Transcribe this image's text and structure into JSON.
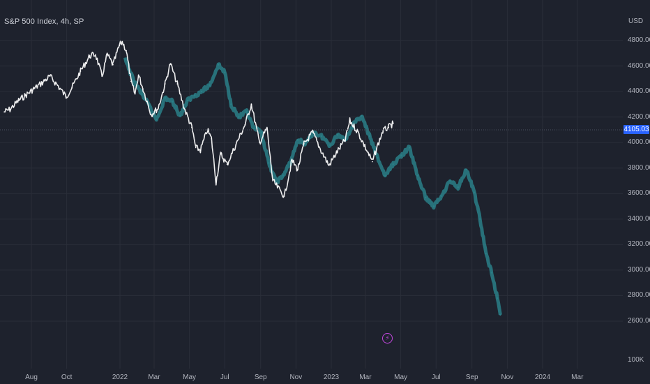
{
  "chart_title": "S&P 500 Index, 4h, SP",
  "currency": "USD",
  "price_label": "4105.03",
  "bottom_axis_label": "100K",
  "event_icon": "lightning-icon",
  "chart_data": {
    "type": "line",
    "title": "S&P 500 Index, 4h, SP",
    "ylabel": "USD",
    "ylim": [
      2490,
      4900
    ],
    "y_ticks": [
      2600,
      2800,
      3000,
      3200,
      3400,
      3600,
      3800,
      4000,
      4200,
      4400,
      4600,
      4800
    ],
    "y_tick_labels": [
      "2600.00",
      "2800.00",
      "3000.00",
      "3200.00",
      "3400.00",
      "3600.00",
      "3800.00",
      "4000.00",
      "4200.00",
      "4400.00",
      "4600.00",
      "4800.00"
    ],
    "x_ticks": [
      "Aug",
      "Oct",
      "2022",
      "Mar",
      "May",
      "Jul",
      "Sep",
      "Nov",
      "2023",
      "Mar",
      "May",
      "Jul",
      "Sep",
      "Nov",
      "2024",
      "Mar"
    ],
    "grid": true,
    "last_price": 4105.03,
    "series": [
      {
        "color": "#ffffff",
        "x": [
          "2021-06-15",
          "2021-06-25",
          "2021-07-10",
          "2021-07-22",
          "2021-08-05",
          "2021-08-20",
          "2021-09-02",
          "2021-09-15",
          "2021-09-30",
          "2021-10-10",
          "2021-10-25",
          "2021-11-10",
          "2021-11-20",
          "2021-12-01",
          "2021-12-10",
          "2021-12-20",
          "2021-12-31",
          "2022-01-05",
          "2022-01-12",
          "2022-01-20",
          "2022-01-27",
          "2022-02-02",
          "2022-02-10",
          "2022-02-24",
          "2022-03-08",
          "2022-03-20",
          "2022-03-29",
          "2022-04-10",
          "2022-04-22",
          "2022-05-05",
          "2022-05-12",
          "2022-05-20",
          "2022-06-01",
          "2022-06-08",
          "2022-06-16",
          "2022-06-24",
          "2022-07-05",
          "2022-07-20",
          "2022-08-05",
          "2022-08-16",
          "2022-08-30",
          "2022-09-12",
          "2022-09-22",
          "2022-09-30",
          "2022-10-12",
          "2022-10-25",
          "2022-11-04",
          "2022-11-15",
          "2022-11-30",
          "2022-12-13",
          "2022-12-28",
          "2023-01-10",
          "2023-01-25",
          "2023-02-02",
          "2023-02-15",
          "2023-02-28",
          "2023-03-13",
          "2023-03-20",
          "2023-03-31",
          "2023-04-10",
          "2023-04-18"
        ],
        "values": [
          4240,
          4260,
          4330,
          4370,
          4420,
          4470,
          4520,
          4450,
          4360,
          4430,
          4560,
          4680,
          4690,
          4520,
          4690,
          4610,
          4760,
          4790,
          4720,
          4480,
          4380,
          4530,
          4420,
          4220,
          4270,
          4460,
          4620,
          4460,
          4270,
          4120,
          3960,
          3940,
          4100,
          4030,
          3690,
          3910,
          3830,
          3980,
          4140,
          4300,
          4000,
          4110,
          3700,
          3650,
          3580,
          3860,
          3790,
          3990,
          4080,
          3950,
          3820,
          3920,
          4020,
          4170,
          4090,
          3970,
          3850,
          3950,
          4090,
          4120,
          4150
        ]
      },
      {
        "color": "#2a7f88",
        "x": [
          "2022-01-10",
          "2022-01-25",
          "2022-02-08",
          "2022-02-20",
          "2022-03-05",
          "2022-03-20",
          "2022-04-02",
          "2022-04-15",
          "2022-04-28",
          "2022-05-10",
          "2022-05-22",
          "2022-06-05",
          "2022-06-20",
          "2022-07-01",
          "2022-07-12",
          "2022-07-25",
          "2022-08-08",
          "2022-08-20",
          "2022-09-02",
          "2022-09-15",
          "2022-09-28",
          "2022-10-10",
          "2022-10-22",
          "2022-11-04",
          "2022-11-18",
          "2022-12-01",
          "2022-12-15",
          "2022-12-30",
          "2023-01-12",
          "2023-01-26",
          "2023-02-08",
          "2023-02-22",
          "2023-03-08",
          "2023-03-22",
          "2023-04-04",
          "2023-04-18",
          "2023-05-02",
          "2023-05-16",
          "2023-05-30",
          "2023-06-13",
          "2023-06-27",
          "2023-07-10",
          "2023-07-25",
          "2023-08-08",
          "2023-08-22",
          "2023-09-05",
          "2023-09-15",
          "2023-09-25",
          "2023-10-05",
          "2023-10-15",
          "2023-10-20"
        ],
        "values": [
          4650,
          4480,
          4380,
          4290,
          4180,
          4350,
          4320,
          4210,
          4330,
          4370,
          4400,
          4450,
          4610,
          4550,
          4300,
          4200,
          4240,
          4110,
          4080,
          3840,
          3690,
          3740,
          3840,
          4020,
          3990,
          4080,
          4050,
          3980,
          4060,
          4030,
          4140,
          4210,
          4050,
          3880,
          3740,
          3830,
          3900,
          3960,
          3740,
          3570,
          3500,
          3580,
          3700,
          3650,
          3790,
          3610,
          3400,
          3130,
          2980,
          2780,
          2650
        ]
      }
    ]
  }
}
